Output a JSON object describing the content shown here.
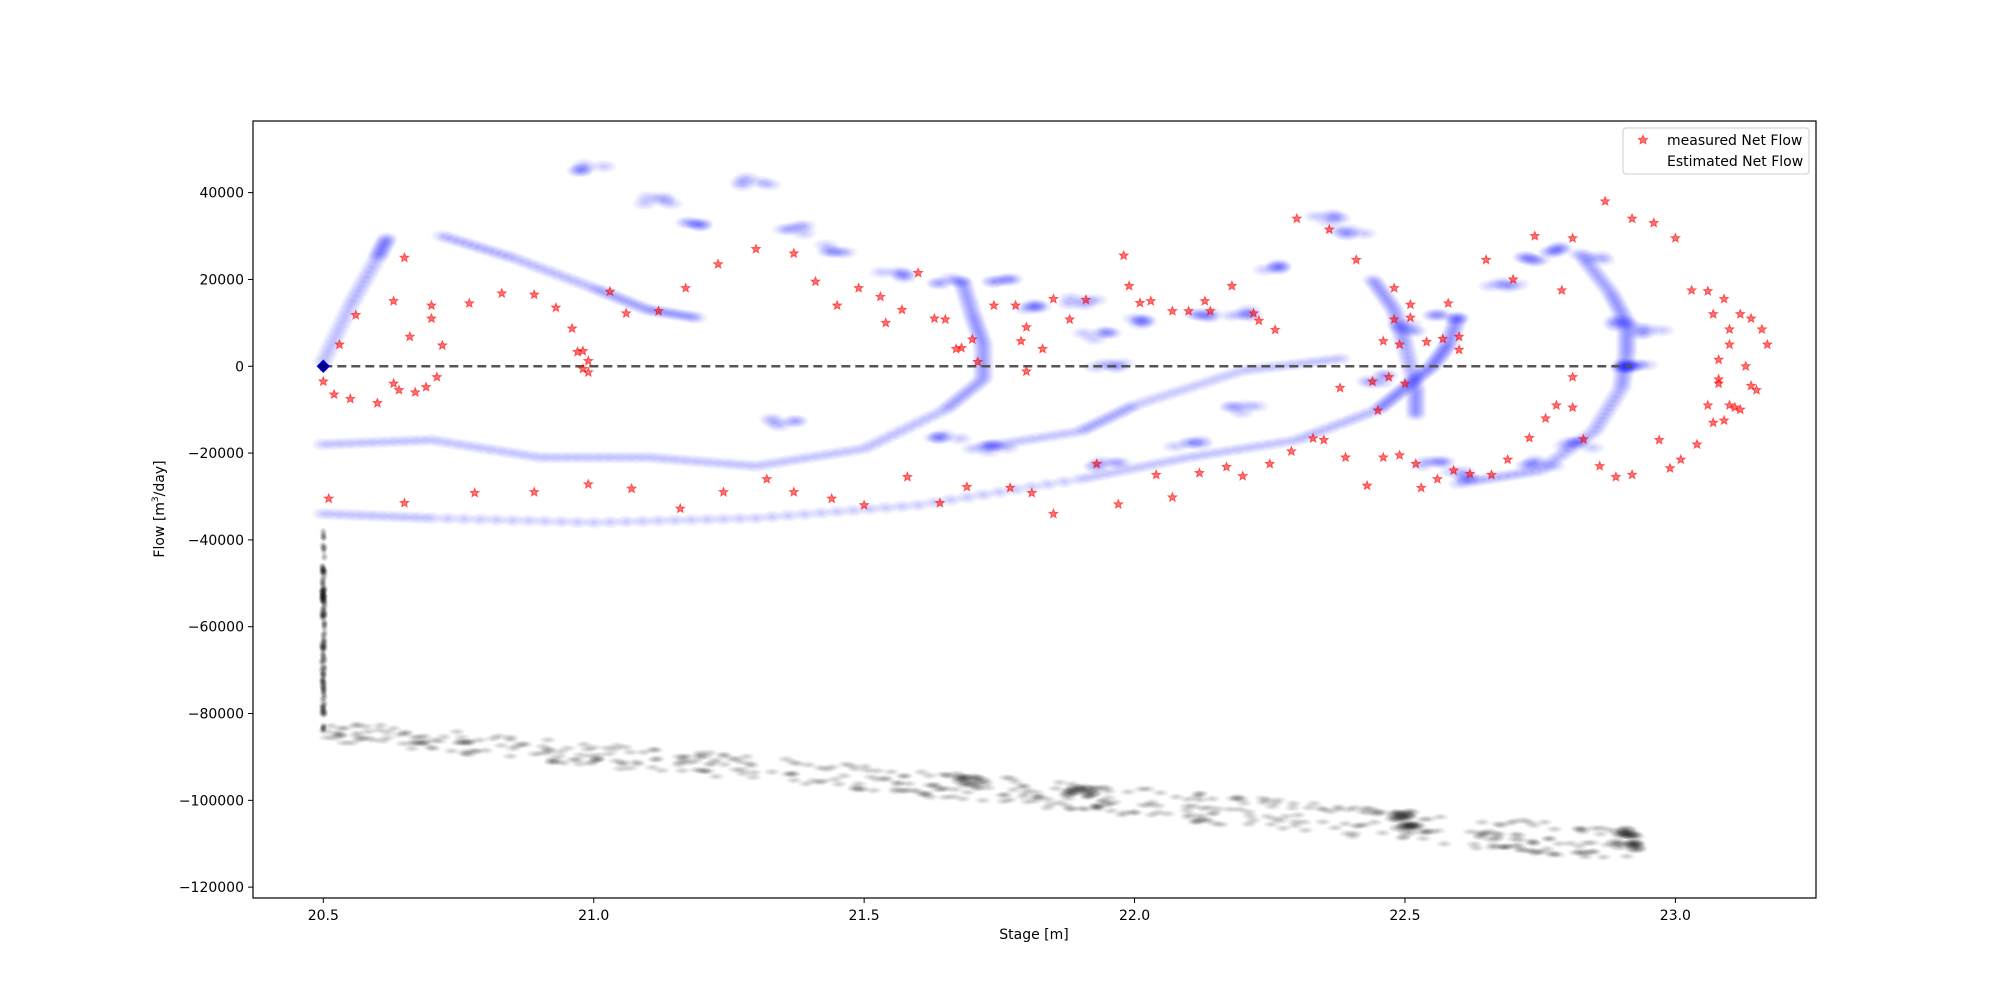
{
  "chart_data": {
    "type": "scatter",
    "xlabel": "Stage [m]",
    "ylabel_main": "Flow [m",
    "ylabel_sup": "3",
    "ylabel_tail": "/day]",
    "xlim": [
      20.37,
      23.26
    ],
    "ylim": [
      -122500,
      56500
    ],
    "x_ticks": [
      20.5,
      21.0,
      21.5,
      22.0,
      22.5,
      23.0
    ],
    "x_tick_labels": [
      "20.5",
      "21.0",
      "21.5",
      "22.0",
      "22.5",
      "23.0"
    ],
    "y_ticks": [
      40000,
      20000,
      0,
      -20000,
      -40000,
      -60000,
      -80000,
      -100000,
      -120000
    ],
    "y_tick_labels": [
      "40000",
      "20000",
      "0",
      "−20000",
      "−40000",
      "−60000",
      "−80000",
      "−100000",
      "−120000"
    ],
    "grid": false,
    "legend_position": "top-right",
    "legend": [
      "measured Net Flow",
      "Estimated Net Flow"
    ],
    "colors": {
      "measured": "#ff0000",
      "estimated": "#0000ff",
      "black_cloud": "#000000",
      "zero_line": "#555555"
    },
    "reference_line": {
      "y": 0,
      "x_start": 20.5,
      "x_end": 22.92,
      "style": "dashed"
    },
    "highlight_point": {
      "x": 20.5,
      "y": 0
    },
    "series": [
      {
        "name": "measured Net Flow",
        "marker": "star",
        "points": [
          [
            20.5,
            0
          ],
          [
            20.5,
            -3500
          ],
          [
            20.51,
            -30500
          ],
          [
            20.52,
            -6500
          ],
          [
            20.53,
            5000
          ],
          [
            20.55,
            -7500
          ],
          [
            20.56,
            11800
          ],
          [
            20.6,
            -8500
          ],
          [
            20.63,
            15000
          ],
          [
            20.63,
            -4000
          ],
          [
            20.64,
            -5500
          ],
          [
            20.65,
            25000
          ],
          [
            20.65,
            -31500
          ],
          [
            20.66,
            6800
          ],
          [
            20.67,
            -6000
          ],
          [
            20.69,
            -4800
          ],
          [
            20.7,
            14000
          ],
          [
            20.7,
            11000
          ],
          [
            20.71,
            -2500
          ],
          [
            20.72,
            4800
          ],
          [
            20.77,
            14500
          ],
          [
            20.78,
            -29200
          ],
          [
            20.83,
            16800
          ],
          [
            20.89,
            16500
          ],
          [
            20.89,
            -29000
          ],
          [
            20.93,
            13500
          ],
          [
            20.96,
            8700
          ],
          [
            20.97,
            3300
          ],
          [
            20.98,
            3500
          ],
          [
            20.98,
            -600
          ],
          [
            20.99,
            -1400
          ],
          [
            20.99,
            1200
          ],
          [
            20.99,
            -27200
          ],
          [
            21.03,
            17200
          ],
          [
            21.06,
            12200
          ],
          [
            21.07,
            -28200
          ],
          [
            21.12,
            12700
          ],
          [
            21.17,
            18000
          ],
          [
            21.16,
            -32800
          ],
          [
            21.23,
            23500
          ],
          [
            21.24,
            -29000
          ],
          [
            21.3,
            27000
          ],
          [
            21.32,
            -26000
          ],
          [
            21.37,
            26000
          ],
          [
            21.37,
            -29000
          ],
          [
            21.41,
            19500
          ],
          [
            21.45,
            14000
          ],
          [
            21.44,
            -30500
          ],
          [
            21.49,
            18000
          ],
          [
            21.5,
            -32000
          ],
          [
            21.53,
            16000
          ],
          [
            21.54,
            10000
          ],
          [
            21.57,
            13000
          ],
          [
            21.58,
            -25500
          ],
          [
            21.6,
            21500
          ],
          [
            21.63,
            11000
          ],
          [
            21.64,
            -31500
          ],
          [
            21.65,
            10800
          ],
          [
            21.67,
            4000
          ],
          [
            21.68,
            4200
          ],
          [
            21.69,
            -27800
          ],
          [
            21.7,
            6200
          ],
          [
            21.71,
            1000
          ],
          [
            21.74,
            14000
          ],
          [
            21.77,
            -28000
          ],
          [
            21.78,
            14000
          ],
          [
            21.79,
            5800
          ],
          [
            21.8,
            9000
          ],
          [
            21.8,
            -1200
          ],
          [
            21.81,
            -29200
          ],
          [
            21.83,
            4000
          ],
          [
            21.85,
            -34000
          ],
          [
            21.85,
            15500
          ],
          [
            21.88,
            10800
          ],
          [
            21.91,
            15300
          ],
          [
            21.93,
            -22500
          ],
          [
            21.97,
            -31800
          ],
          [
            21.98,
            25500
          ],
          [
            21.99,
            18500
          ],
          [
            22.01,
            14600
          ],
          [
            22.03,
            15000
          ],
          [
            22.04,
            -25000
          ],
          [
            22.07,
            12700
          ],
          [
            22.07,
            -30200
          ],
          [
            22.1,
            12700
          ],
          [
            22.12,
            -24600
          ],
          [
            22.13,
            15000
          ],
          [
            22.14,
            12700
          ],
          [
            22.17,
            -23200
          ],
          [
            22.18,
            18500
          ],
          [
            22.2,
            -25300
          ],
          [
            22.22,
            12200
          ],
          [
            22.23,
            10500
          ],
          [
            22.25,
            -22500
          ],
          [
            22.26,
            8400
          ],
          [
            22.29,
            -19600
          ],
          [
            22.3,
            34000
          ],
          [
            22.33,
            -16600
          ],
          [
            22.36,
            31500
          ],
          [
            22.35,
            -17000
          ],
          [
            22.38,
            -5000
          ],
          [
            22.39,
            -21000
          ],
          [
            22.41,
            24500
          ],
          [
            22.43,
            -27500
          ],
          [
            22.44,
            -3500
          ],
          [
            22.45,
            -10200
          ],
          [
            22.46,
            5800
          ],
          [
            22.46,
            -21000
          ],
          [
            22.47,
            -2500
          ],
          [
            22.48,
            10800
          ],
          [
            22.48,
            18000
          ],
          [
            22.49,
            5000
          ],
          [
            22.49,
            -20500
          ],
          [
            22.5,
            -4000
          ],
          [
            22.51,
            11200
          ],
          [
            22.51,
            14200
          ],
          [
            22.52,
            -22500
          ],
          [
            22.53,
            -28000
          ],
          [
            22.54,
            5600
          ],
          [
            22.56,
            -26000
          ],
          [
            22.57,
            6300
          ],
          [
            22.58,
            14500
          ],
          [
            22.59,
            -24000
          ],
          [
            22.6,
            3800
          ],
          [
            22.6,
            6800
          ],
          [
            22.62,
            -24800
          ],
          [
            22.65,
            24500
          ],
          [
            22.66,
            -25000
          ],
          [
            22.69,
            -21500
          ],
          [
            22.7,
            20000
          ],
          [
            22.73,
            -16500
          ],
          [
            22.74,
            30000
          ],
          [
            22.76,
            -12000
          ],
          [
            22.78,
            -9000
          ],
          [
            22.79,
            17500
          ],
          [
            22.81,
            -2500
          ],
          [
            22.81,
            -9500
          ],
          [
            22.81,
            29500
          ],
          [
            22.83,
            -16800
          ],
          [
            22.86,
            -23000
          ],
          [
            22.87,
            38000
          ],
          [
            22.89,
            -25500
          ],
          [
            22.92,
            34000
          ],
          [
            22.92,
            -25000
          ],
          [
            22.96,
            33000
          ],
          [
            22.97,
            -17000
          ],
          [
            22.99,
            -23500
          ],
          [
            23.0,
            29500
          ],
          [
            23.01,
            -21500
          ],
          [
            23.03,
            17500
          ],
          [
            23.04,
            -18000
          ],
          [
            23.06,
            17300
          ],
          [
            23.06,
            -9000
          ],
          [
            23.07,
            12000
          ],
          [
            23.07,
            -13000
          ],
          [
            23.08,
            -3000
          ],
          [
            23.08,
            -4000
          ],
          [
            23.08,
            1500
          ],
          [
            23.09,
            15500
          ],
          [
            23.09,
            -12500
          ],
          [
            23.1,
            8500
          ],
          [
            23.1,
            5000
          ],
          [
            23.1,
            -9000
          ],
          [
            23.11,
            -9500
          ],
          [
            23.12,
            12000
          ],
          [
            23.12,
            -10000
          ],
          [
            23.13,
            0
          ],
          [
            23.14,
            11000
          ],
          [
            23.14,
            -4500
          ],
          [
            23.15,
            -5500
          ],
          [
            23.16,
            8500
          ],
          [
            23.17,
            5000
          ]
        ]
      },
      {
        "name": "Estimated Net Flow",
        "marker": "circle",
        "curves": [
          [
            [
              20.5,
              -34000
            ],
            [
              20.7,
              -35000
            ],
            [
              21.0,
              -36000
            ],
            [
              21.3,
              -35000
            ],
            [
              21.6,
              -32000
            ],
            [
              21.9,
              -26000
            ],
            [
              22.1,
              -21000
            ],
            [
              22.3,
              -17000
            ],
            [
              22.45,
              -10000
            ],
            [
              22.5,
              -5000
            ],
            [
              22.55,
              0
            ],
            [
              22.58,
              5000
            ],
            [
              22.6,
              12000
            ]
          ],
          [
            [
              20.5,
              -18000
            ],
            [
              20.7,
              -17000
            ],
            [
              20.9,
              -21000
            ],
            [
              21.1,
              -21000
            ],
            [
              21.3,
              -23000
            ],
            [
              21.5,
              -19000
            ],
            [
              21.65,
              -10000
            ],
            [
              21.72,
              -3000
            ],
            [
              21.72,
              5000
            ],
            [
              21.7,
              12000
            ],
            [
              21.68,
              20000
            ]
          ],
          [
            [
              21.7,
              -19000
            ],
            [
              21.9,
              -15000
            ],
            [
              22.0,
              -9000
            ],
            [
              22.2,
              -1000
            ],
            [
              22.4,
              2000
            ]
          ],
          [
            [
              22.6,
              -27000
            ],
            [
              22.75,
              -24000
            ],
            [
              22.85,
              -15000
            ],
            [
              22.9,
              -5000
            ],
            [
              22.91,
              3000
            ],
            [
              22.91,
              10000
            ],
            [
              22.88,
              17000
            ],
            [
              22.83,
              25000
            ]
          ],
          [
            [
              22.44,
              20000
            ],
            [
              22.48,
              13000
            ],
            [
              22.5,
              5000
            ],
            [
              22.52,
              -5000
            ],
            [
              22.52,
              -12000
            ]
          ],
          [
            [
              20.5,
              1000
            ],
            [
              20.55,
              14000
            ],
            [
              20.6,
              25000
            ],
            [
              20.62,
              30000
            ]
          ],
          [
            [
              20.72,
              30000
            ],
            [
              20.85,
              25000
            ],
            [
              21.0,
              18000
            ],
            [
              21.1,
              13000
            ],
            [
              21.2,
              11000
            ]
          ]
        ],
        "clusters": [
          [
            21.0,
            45500
          ],
          [
            21.12,
            38000
          ],
          [
            21.3,
            42500
          ],
          [
            21.2,
            32500
          ],
          [
            21.37,
            31500
          ],
          [
            21.45,
            27000
          ],
          [
            21.55,
            21000
          ],
          [
            21.65,
            20000
          ],
          [
            21.76,
            19500
          ],
          [
            21.82,
            13500
          ],
          [
            21.9,
            15000
          ],
          [
            21.93,
            7000
          ],
          [
            21.95,
            0
          ],
          [
            22.0,
            10000
          ],
          [
            22.12,
            12000
          ],
          [
            22.2,
            12000
          ],
          [
            22.25,
            23000
          ],
          [
            22.35,
            34000
          ],
          [
            22.4,
            31000
          ],
          [
            22.58,
            11500
          ],
          [
            22.68,
            18500
          ],
          [
            22.72,
            25000
          ],
          [
            22.78,
            27000
          ],
          [
            22.85,
            25000
          ],
          [
            22.9,
            10000
          ],
          [
            22.9,
            -500
          ],
          [
            22.92,
            0
          ],
          [
            22.95,
            8000
          ],
          [
            21.35,
            -13000
          ],
          [
            21.65,
            -16000
          ],
          [
            21.75,
            -19000
          ],
          [
            21.95,
            -22500
          ],
          [
            22.1,
            -18000
          ],
          [
            22.2,
            -10000
          ],
          [
            22.45,
            -3000
          ],
          [
            22.5,
            9000
          ],
          [
            22.55,
            -22000
          ],
          [
            22.6,
            -25000
          ],
          [
            22.75,
            -22500
          ],
          [
            22.82,
            -18000
          ]
        ]
      }
    ],
    "black_cloud": {
      "vertical_band": {
        "x": 20.5,
        "y_from": -84000,
        "y_to": -38000
      },
      "slanted_bands": [
        [
          [
            20.5,
            -82500
          ],
          [
            22.92,
            -107500
          ]
        ],
        [
          [
            20.5,
            -84000
          ],
          [
            22.92,
            -111000
          ]
        ],
        [
          [
            20.5,
            -85500
          ],
          [
            22.92,
            -113500
          ]
        ]
      ],
      "dense_spots": [
        [
          21.7,
          -95500
        ],
        [
          21.9,
          -98000
        ],
        [
          22.5,
          -103500
        ],
        [
          22.5,
          -106500
        ],
        [
          22.91,
          -107500
        ],
        [
          22.91,
          -110500
        ]
      ]
    }
  }
}
